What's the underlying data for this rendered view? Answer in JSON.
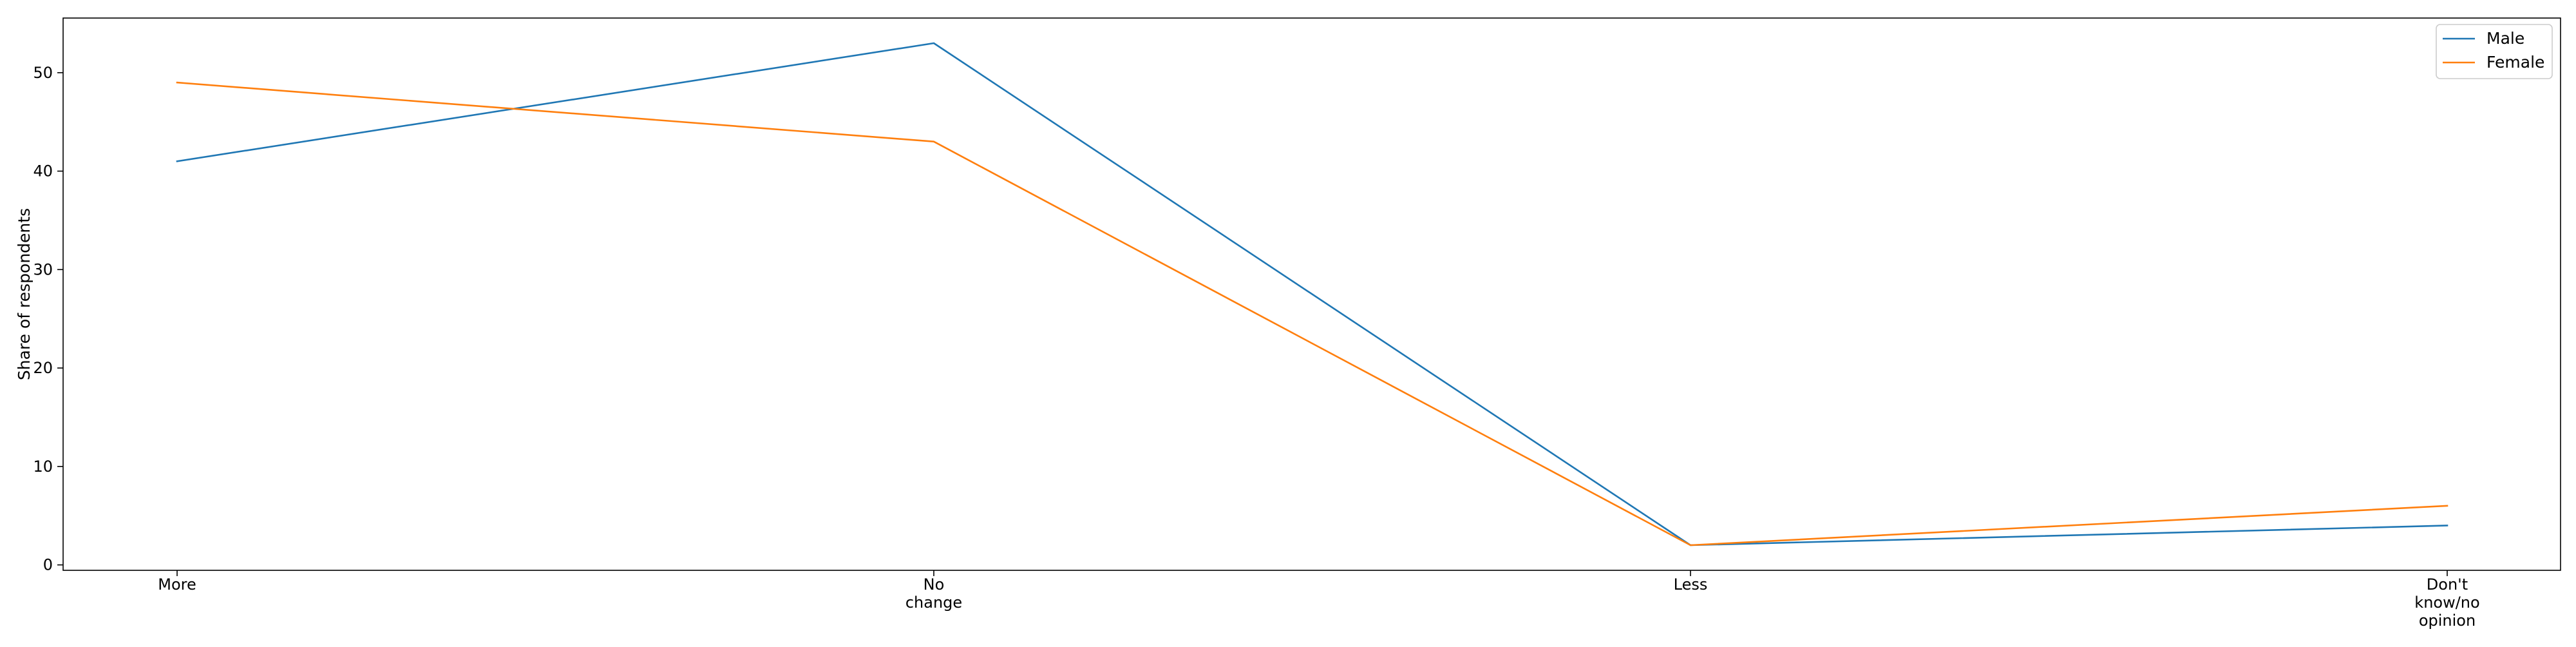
{
  "chart_data": {
    "type": "line",
    "title": "",
    "xlabel": "",
    "ylabel": "Share of respondents",
    "categories": [
      [
        "More"
      ],
      [
        "No",
        "change"
      ],
      [
        "Less"
      ],
      [
        "Don't",
        "know/no",
        "opinion"
      ]
    ],
    "series": [
      {
        "name": "Male",
        "color": "#1f77b4",
        "values": [
          41,
          53,
          2,
          4
        ]
      },
      {
        "name": "Female",
        "color": "#ff7f0e",
        "values": [
          49,
          43,
          2,
          6
        ]
      }
    ],
    "ylim": [
      -0.55,
      55.55
    ],
    "yticks": [
      0,
      10,
      20,
      30,
      40,
      50
    ],
    "grid": false,
    "legend_position": "top-right"
  }
}
